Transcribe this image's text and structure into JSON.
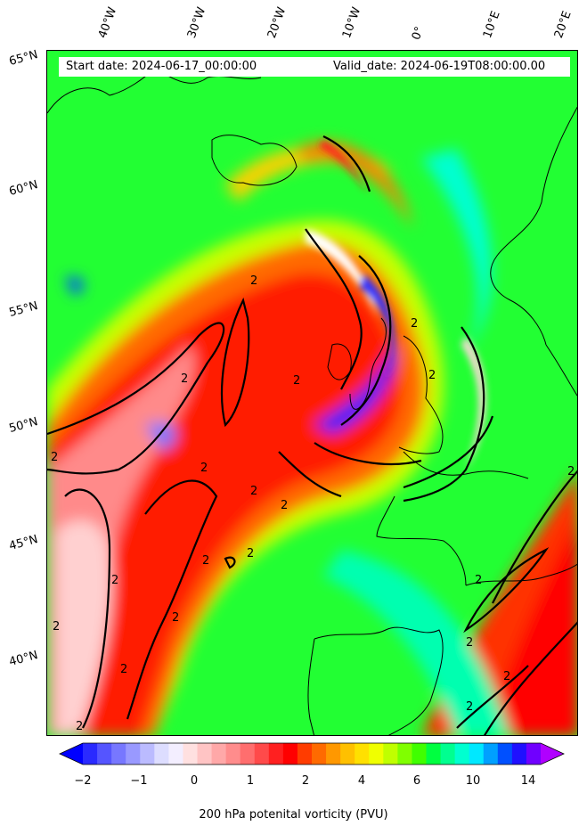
{
  "map": {
    "start_label": "Start date: 2024-06-17_00:00:00",
    "valid_label": "Valid_date: 2024-06-19T08:00:00.00",
    "longitude_labels": [
      "40°W",
      "30°W",
      "20°W",
      "10°W",
      "0°",
      "10°E",
      "20°E"
    ],
    "latitude_labels": [
      "65°N",
      "60°N",
      "55°N",
      "50°N",
      "45°N",
      "40°N"
    ],
    "contour_label": "2",
    "contour_level_pvu": 2
  },
  "colorbar": {
    "title": "200 hPa potenital vorticity (PVU)",
    "tick_labels": [
      "−2",
      "−1",
      "0",
      "1",
      "2",
      "4",
      "6",
      "10",
      "14"
    ],
    "colors": [
      "#0000ff",
      "#2a2aff",
      "#5555ff",
      "#7777ff",
      "#9999ff",
      "#bbbbff",
      "#ddddff",
      "#f3eeff",
      "#ffe0e0",
      "#ffc4c4",
      "#ffa8a8",
      "#ff8c8c",
      "#ff6e6e",
      "#ff4a4a",
      "#ff2020",
      "#ff0000",
      "#ff3c00",
      "#ff6a00",
      "#ff9800",
      "#ffc000",
      "#ffe000",
      "#f0ff00",
      "#c0ff00",
      "#80ff00",
      "#40ff00",
      "#00ff40",
      "#00ff90",
      "#00ffd0",
      "#00e8ff",
      "#00a0ff",
      "#0050ff",
      "#2010ff",
      "#7000ff",
      "#b000ff"
    ]
  }
}
